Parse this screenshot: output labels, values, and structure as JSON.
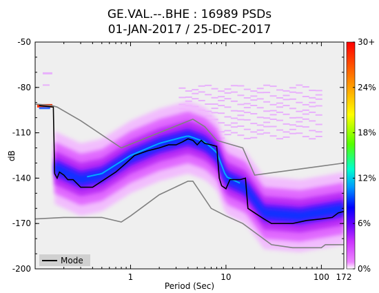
{
  "chart_data": {
    "type": "heatmap",
    "title_line1": "GE.VAL.--.BHE : 16989 PSDs",
    "title_line2": "01-JAN-2017 / 25-DEC-2017",
    "xlabel": "Period (Sec)",
    "ylabel": "dB",
    "x_scale": "log",
    "xlim": [
      0.1,
      172
    ],
    "ylim": [
      -200,
      -50
    ],
    "x_ticks": [
      {
        "value": 1,
        "label": "1"
      },
      {
        "value": 10,
        "label": "10"
      },
      {
        "value": 100,
        "label": "100"
      },
      {
        "value": 172,
        "label": "172"
      }
    ],
    "y_ticks": [
      {
        "value": -50,
        "label": "-50"
      },
      {
        "value": -80,
        "label": "-80"
      },
      {
        "value": -110,
        "label": "-110"
      },
      {
        "value": -140,
        "label": "-140"
      },
      {
        "value": -170,
        "label": "-170"
      },
      {
        "value": -200,
        "label": "-200"
      }
    ],
    "colorbar": {
      "range": [
        0,
        30
      ],
      "ticks": [
        {
          "value": 30,
          "label": "30+"
        },
        {
          "value": 24,
          "label": "24%"
        },
        {
          "value": 18,
          "label": "18%"
        },
        {
          "value": 12,
          "label": "12%"
        },
        {
          "value": 6,
          "label": "6%"
        },
        {
          "value": 0,
          "label": "0%"
        }
      ],
      "colors": [
        "#ffffff",
        "#ee88ff",
        "#cc33ff",
        "#7700ff",
        "#0000ff",
        "#0099ff",
        "#00ffcc",
        "#55ff00",
        "#ffff00",
        "#ff8800",
        "#ff0000"
      ]
    },
    "legend": {
      "position": "bottom-left",
      "entries": [
        {
          "label": "Mode",
          "color": "#000000"
        }
      ]
    },
    "mode_curve": [
      [
        0.11,
        -92
      ],
      [
        0.155,
        -93
      ],
      [
        0.16,
        -137
      ],
      [
        0.17,
        -140
      ],
      [
        0.18,
        -136
      ],
      [
        0.2,
        -138
      ],
      [
        0.22,
        -141
      ],
      [
        0.25,
        -141
      ],
      [
        0.3,
        -146
      ],
      [
        0.4,
        -146
      ],
      [
        0.5,
        -142
      ],
      [
        0.7,
        -136
      ],
      [
        0.9,
        -130
      ],
      [
        1.1,
        -125
      ],
      [
        1.5,
        -122
      ],
      [
        2,
        -120
      ],
      [
        2.5,
        -118
      ],
      [
        3,
        -118
      ],
      [
        3.5,
        -116
      ],
      [
        4,
        -114
      ],
      [
        4.5,
        -115
      ],
      [
        5,
        -118
      ],
      [
        5.5,
        -115
      ],
      [
        6,
        -117
      ],
      [
        7,
        -118
      ],
      [
        8,
        -119
      ],
      [
        8.5,
        -140
      ],
      [
        9,
        -145
      ],
      [
        10,
        -147
      ],
      [
        11,
        -141
      ],
      [
        14,
        -141
      ],
      [
        16,
        -140
      ],
      [
        17,
        -160
      ],
      [
        20,
        -163
      ],
      [
        25,
        -167
      ],
      [
        30,
        -170
      ],
      [
        50,
        -170
      ],
      [
        70,
        -168
      ],
      [
        100,
        -167
      ],
      [
        130,
        -166
      ],
      [
        150,
        -163
      ],
      [
        172,
        -162
      ]
    ],
    "noise_model_upper": [
      [
        0.1,
        -91
      ],
      [
        0.15,
        -92
      ],
      [
        0.17,
        -93
      ],
      [
        0.3,
        -102
      ],
      [
        0.8,
        -120
      ],
      [
        4.5,
        -101
      ],
      [
        6,
        -106
      ],
      [
        8,
        -115
      ],
      [
        15,
        -120
      ],
      [
        20,
        -138
      ],
      [
        100,
        -132
      ],
      [
        172,
        -130
      ]
    ],
    "noise_model_lower": [
      [
        0.1,
        -167
      ],
      [
        0.2,
        -166
      ],
      [
        0.5,
        -166
      ],
      [
        0.8,
        -169
      ],
      [
        1,
        -165
      ],
      [
        2,
        -151
      ],
      [
        4,
        -142
      ],
      [
        4.5,
        -142
      ],
      [
        7,
        -160
      ],
      [
        10,
        -165
      ],
      [
        15,
        -170
      ],
      [
        30,
        -184
      ],
      [
        50,
        -186
      ],
      [
        100,
        -186
      ],
      [
        110,
        -184
      ],
      [
        172,
        -184
      ]
    ],
    "density_band_center": [
      [
        0.16,
        -133
      ],
      [
        0.3,
        -141
      ],
      [
        0.5,
        -138
      ],
      [
        1,
        -126
      ],
      [
        2,
        -118
      ],
      [
        4,
        -113
      ],
      [
        6,
        -117
      ],
      [
        8,
        -124
      ],
      [
        10,
        -140
      ],
      [
        16,
        -146
      ],
      [
        25,
        -163
      ],
      [
        60,
        -165
      ],
      [
        172,
        -160
      ]
    ]
  }
}
